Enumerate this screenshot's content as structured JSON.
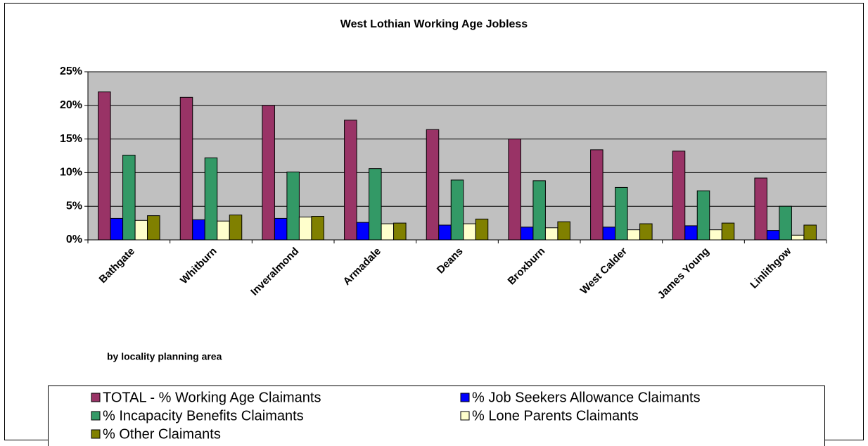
{
  "chart_data": {
    "type": "bar",
    "title": "West Lothian Working Age Jobless",
    "annotation": "by locality planning area",
    "categories": [
      "Bathgate",
      "Whitburn",
      "Inveralmond",
      "Armadale",
      "Deans",
      "Broxburn",
      "West Calder",
      "James Young",
      "Linlithgow"
    ],
    "series": [
      {
        "name": "TOTAL - % Working Age Claimants",
        "color": "#993366",
        "values": [
          22.0,
          21.2,
          20.0,
          17.8,
          16.4,
          15.0,
          13.4,
          13.2,
          9.2
        ]
      },
      {
        "name": "% Job Seekers Allowance Claimants",
        "color": "#0000ff",
        "values": [
          3.2,
          3.0,
          3.2,
          2.6,
          2.2,
          1.9,
          1.9,
          2.1,
          1.4
        ]
      },
      {
        "name": "% Incapacity Benefits Claimants",
        "color": "#339966",
        "values": [
          12.6,
          12.2,
          10.1,
          10.6,
          8.9,
          8.8,
          7.8,
          7.3,
          5.0
        ]
      },
      {
        "name": "% Lone Parents Claimants",
        "color": "#ffffcc",
        "values": [
          2.9,
          2.8,
          3.4,
          2.4,
          2.4,
          1.8,
          1.5,
          1.5,
          0.7
        ]
      },
      {
        "name": "% Other Claimants",
        "color": "#808000",
        "values": [
          3.6,
          3.7,
          3.5,
          2.5,
          3.1,
          2.7,
          2.4,
          2.5,
          2.2
        ]
      }
    ],
    "ylim": [
      0,
      25
    ],
    "yticks": [
      {
        "value": 0,
        "label": "0%"
      },
      {
        "value": 5,
        "label": "5%"
      },
      {
        "value": 10,
        "label": "10%"
      },
      {
        "value": 15,
        "label": "15%"
      },
      {
        "value": 20,
        "label": "20%"
      },
      {
        "value": 25,
        "label": "25%"
      }
    ],
    "grid": true,
    "plot_background": "#c0c0c0",
    "legend": "bottom"
  }
}
